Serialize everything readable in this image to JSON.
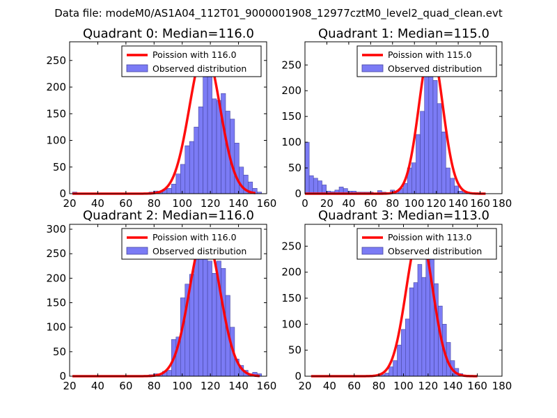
{
  "figure_title": "Data file: modeM0/AS1A04_112T01_9000001908_12977cztM0_level2_quad_clean.evt",
  "colors": {
    "histogram": "#7b7bf5",
    "histogram_edge": "#4646a0",
    "fit": "#ff0000",
    "text": "#000000"
  },
  "chart_data": [
    {
      "type": "bar",
      "title": "Quadrant 0: Median=116.0",
      "xlim": [
        20,
        160
      ],
      "ylim": [
        0,
        285
      ],
      "xticks": [
        20,
        40,
        60,
        80,
        100,
        120,
        140,
        160
      ],
      "yticks": [
        0,
        50,
        100,
        150,
        200,
        250
      ],
      "legend": {
        "location": "top-right",
        "fit_label": "Poission with 116.0",
        "hist_label": "Observed distribution"
      },
      "bin_start": 22,
      "bin_width": 3.2,
      "counts": [
        3,
        0,
        0,
        0,
        0,
        0,
        0,
        0,
        0,
        0,
        0,
        0,
        0,
        0,
        0,
        0,
        0,
        3,
        5,
        2,
        8,
        10,
        18,
        37,
        55,
        90,
        98,
        125,
        163,
        250,
        265,
        178,
        175,
        188,
        155,
        140,
        95,
        50,
        35,
        22,
        10,
        3
      ],
      "fit": {
        "label": "Poission with 116.0",
        "mean": 116,
        "peak": 270,
        "sigma": 10.8,
        "x_start": 22,
        "x_end": 152
      }
    },
    {
      "type": "bar",
      "title": "Quadrant 1: Median=115.0",
      "xlim": [
        0,
        180
      ],
      "ylim": [
        0,
        295
      ],
      "xticks": [
        0,
        20,
        40,
        60,
        80,
        100,
        120,
        140,
        160,
        180
      ],
      "yticks": [
        0,
        50,
        100,
        150,
        200,
        250
      ],
      "legend": {
        "location": "top-right",
        "fit_label": "Poission with 115.0",
        "hist_label": "Observed distribution"
      },
      "bin_start": 0,
      "bin_width": 3.9,
      "counts": [
        100,
        35,
        30,
        25,
        17,
        5,
        4,
        7,
        13,
        10,
        5,
        5,
        3,
        3,
        3,
        3,
        0,
        6,
        3,
        2,
        7,
        5,
        10,
        20,
        50,
        60,
        115,
        160,
        235,
        240,
        220,
        175,
        120,
        50,
        30,
        15,
        5,
        2,
        0,
        0,
        0
      ],
      "fit": {
        "label": "Poission with 115.0",
        "mean": 115,
        "peak": 285,
        "sigma": 10.8,
        "x_start": 0,
        "x_end": 165
      }
    },
    {
      "type": "bar",
      "title": "Quadrant 2: Median=116.0",
      "xlim": [
        20,
        160
      ],
      "ylim": [
        0,
        310
      ],
      "xticks": [
        20,
        40,
        60,
        80,
        100,
        120,
        140,
        160
      ],
      "yticks": [
        0,
        50,
        100,
        150,
        200,
        250,
        300
      ],
      "legend": {
        "location": "top-right",
        "fit_label": "Poission with 116.0",
        "hist_label": "Observed distribution"
      },
      "bin_start": 22,
      "bin_width": 3.2,
      "counts": [
        0,
        0,
        0,
        0,
        0,
        0,
        0,
        0,
        0,
        0,
        0,
        0,
        0,
        0,
        0,
        0,
        0,
        3,
        5,
        3,
        10,
        12,
        75,
        80,
        160,
        188,
        208,
        240,
        265,
        280,
        235,
        210,
        235,
        220,
        165,
        100,
        35,
        22,
        12,
        5,
        8,
        5
      ],
      "fit": {
        "label": "Poission with 116.0",
        "mean": 116,
        "peak": 292,
        "sigma": 10.8,
        "x_start": 22,
        "x_end": 155
      }
    },
    {
      "type": "bar",
      "title": "Quadrant 3: Median=113.0",
      "xlim": [
        20,
        180
      ],
      "ylim": [
        0,
        292
      ],
      "xticks": [
        20,
        40,
        60,
        80,
        100,
        120,
        140,
        160,
        180
      ],
      "yticks": [
        0,
        50,
        100,
        150,
        200,
        250
      ],
      "legend": {
        "location": "top-right",
        "fit_label": "Poission with 113.0",
        "hist_label": "Observed distribution"
      },
      "bin_start": 25,
      "bin_width": 3.33,
      "counts": [
        0,
        0,
        0,
        0,
        0,
        0,
        0,
        0,
        0,
        0,
        0,
        0,
        0,
        0,
        0,
        0,
        0,
        3,
        6,
        18,
        30,
        60,
        90,
        110,
        170,
        180,
        215,
        190,
        235,
        245,
        178,
        135,
        100,
        65,
        30,
        15,
        5,
        2,
        0,
        0,
        0
      ],
      "fit": {
        "label": "Poission with 113.0",
        "mean": 113,
        "peak": 275,
        "sigma": 10.8,
        "x_start": 25,
        "x_end": 160
      }
    }
  ]
}
